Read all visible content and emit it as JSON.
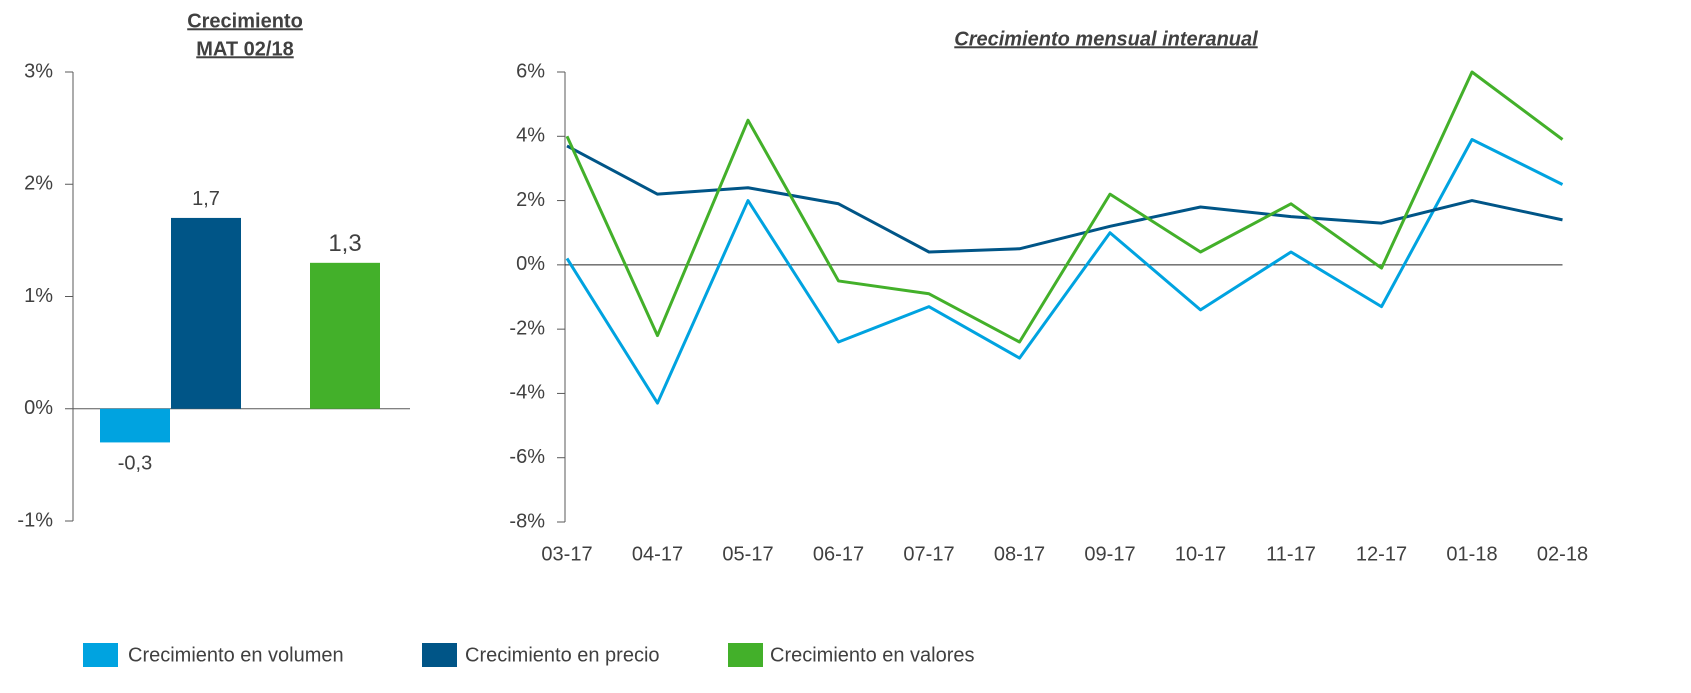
{
  "chart_data": [
    {
      "type": "bar",
      "title": [
        "Crecimiento",
        "MAT 02/18"
      ],
      "ylim": [
        -1,
        3
      ],
      "yticks": [
        {
          "value": -1,
          "label": "-1%"
        },
        {
          "value": 0,
          "label": "0%"
        },
        {
          "value": 1,
          "label": "1%"
        },
        {
          "value": 2,
          "label": "2%"
        },
        {
          "value": 3,
          "label": "3%"
        }
      ],
      "series": [
        {
          "name": "Crecimiento en volumen",
          "color": "#00a3e0",
          "values": [
            -0.3
          ],
          "value_labels": [
            "-0,3"
          ]
        },
        {
          "name": "Crecimiento en precio",
          "color": "#005587",
          "values": [
            1.7
          ],
          "value_labels": [
            "1,7"
          ]
        },
        {
          "name": "Crecimiento en valores",
          "color": "#43b02a",
          "values": [
            1.3
          ],
          "value_labels": [
            "1,3"
          ]
        }
      ]
    },
    {
      "type": "line",
      "title": "Crecimiento mensual interanual",
      "categories": [
        "03-17",
        "04-17",
        "05-17",
        "06-17",
        "07-17",
        "08-17",
        "09-17",
        "10-17",
        "11-17",
        "12-17",
        "01-18",
        "02-18"
      ],
      "ylim": [
        -8,
        6
      ],
      "yticks": [
        {
          "value": -8,
          "label": "-8%"
        },
        {
          "value": -6,
          "label": "-6%"
        },
        {
          "value": -4,
          "label": "-4%"
        },
        {
          "value": -2,
          "label": "-2%"
        },
        {
          "value": 0,
          "label": "0%"
        },
        {
          "value": 2,
          "label": "2%"
        },
        {
          "value": 4,
          "label": "4%"
        },
        {
          "value": 6,
          "label": "6%"
        }
      ],
      "series": [
        {
          "color": "#00a3e0",
          "values": [
            0.2,
            -4.3,
            2.0,
            -2.4,
            -1.3,
            -2.9,
            1.0,
            -1.4,
            0.4,
            -1.3,
            3.9,
            2.5
          ]
        },
        {
          "color": "#005587",
          "values": [
            3.7,
            2.2,
            2.4,
            1.9,
            0.4,
            0.5,
            1.2,
            1.8,
            1.5,
            1.3,
            2.0,
            1.4
          ]
        },
        {
          "color": "#43b02a",
          "values": [
            4.0,
            -2.2,
            4.5,
            -0.5,
            -0.9,
            -2.4,
            2.2,
            0.4,
            1.9,
            -0.1,
            6.0,
            3.9
          ]
        }
      ]
    }
  ]
}
